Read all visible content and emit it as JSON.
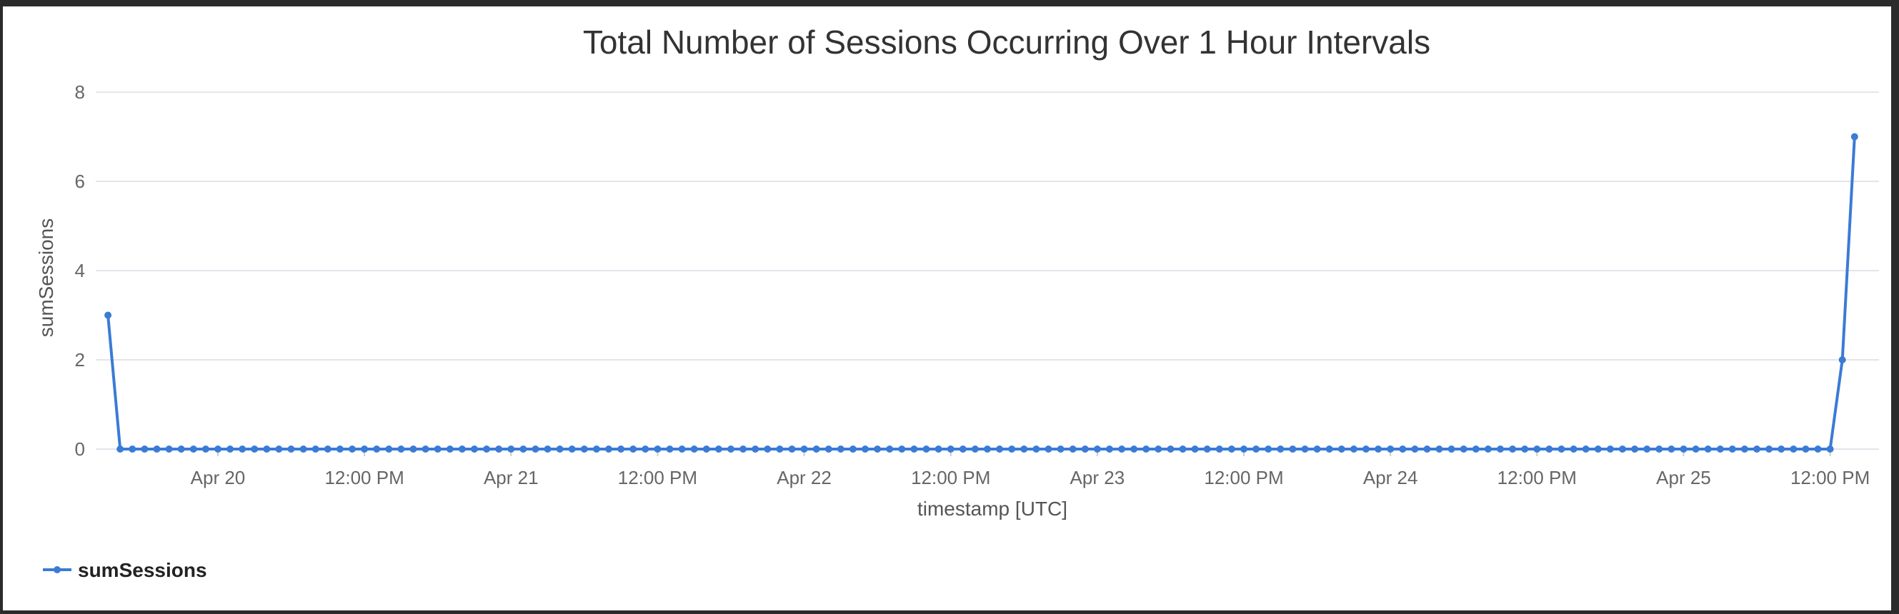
{
  "chart_data": {
    "type": "line",
    "title": "Total Number of Sessions Occurring Over 1 Hour Intervals",
    "xlabel": "timestamp [UTC]",
    "ylabel": "sumSessions",
    "x_start": "2025-04-19T15:00",
    "x_range": [
      "2025-04-19T14:00",
      "2025-04-25T16:00"
    ],
    "ylim": [
      0,
      8
    ],
    "y_ticks": [
      "0",
      "2",
      "4",
      "6",
      "8"
    ],
    "x_ticks": [
      {
        "at": "2025-04-20T00:00",
        "label": "Apr 20"
      },
      {
        "at": "2025-04-20T12:00",
        "label": "12:00 PM"
      },
      {
        "at": "2025-04-21T00:00",
        "label": "Apr 21"
      },
      {
        "at": "2025-04-21T12:00",
        "label": "12:00 PM"
      },
      {
        "at": "2025-04-22T00:00",
        "label": "Apr 22"
      },
      {
        "at": "2025-04-22T12:00",
        "label": "12:00 PM"
      },
      {
        "at": "2025-04-23T00:00",
        "label": "Apr 23"
      },
      {
        "at": "2025-04-23T12:00",
        "label": "12:00 PM"
      },
      {
        "at": "2025-04-24T00:00",
        "label": "Apr 24"
      },
      {
        "at": "2025-04-24T12:00",
        "label": "12:00 PM"
      },
      {
        "at": "2025-04-25T00:00",
        "label": "Apr 25"
      },
      {
        "at": "2025-04-25T12:00",
        "label": "12:00 PM"
      }
    ],
    "grid": true,
    "legend_position": "bottom-left",
    "series": [
      {
        "name": "sumSessions",
        "color": "#3a7bd5",
        "values": [
          3,
          0,
          0,
          0,
          0,
          0,
          0,
          0,
          0,
          0,
          0,
          0,
          0,
          0,
          0,
          0,
          0,
          0,
          0,
          0,
          0,
          0,
          0,
          0,
          0,
          0,
          0,
          0,
          0,
          0,
          0,
          0,
          0,
          0,
          0,
          0,
          0,
          0,
          0,
          0,
          0,
          0,
          0,
          0,
          0,
          0,
          0,
          0,
          0,
          0,
          0,
          0,
          0,
          0,
          0,
          0,
          0,
          0,
          0,
          0,
          0,
          0,
          0,
          0,
          0,
          0,
          0,
          0,
          0,
          0,
          0,
          0,
          0,
          0,
          0,
          0,
          0,
          0,
          0,
          0,
          0,
          0,
          0,
          0,
          0,
          0,
          0,
          0,
          0,
          0,
          0,
          0,
          0,
          0,
          0,
          0,
          0,
          0,
          0,
          0,
          0,
          0,
          0,
          0,
          0,
          0,
          0,
          0,
          0,
          0,
          0,
          0,
          0,
          0,
          0,
          0,
          0,
          0,
          0,
          0,
          0,
          0,
          0,
          0,
          0,
          0,
          0,
          0,
          0,
          0,
          0,
          0,
          0,
          0,
          0,
          0,
          0,
          0,
          0,
          0,
          0,
          0,
          2,
          7
        ]
      }
    ]
  }
}
